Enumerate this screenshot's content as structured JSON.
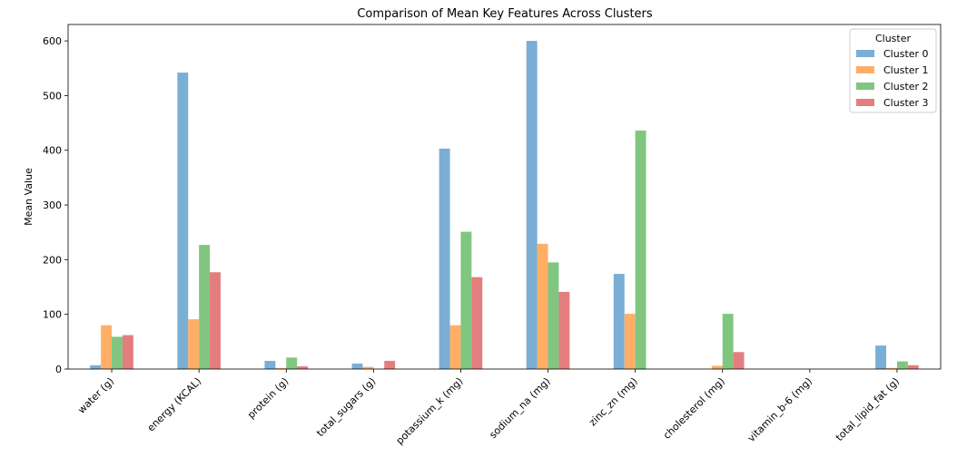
{
  "chart_data": {
    "type": "bar",
    "title": "Comparison of Mean Key Features Across Clusters",
    "xlabel": "",
    "ylabel": "Mean Value",
    "ylim": [
      0,
      630
    ],
    "yticks": [
      0,
      100,
      200,
      300,
      400,
      500,
      600
    ],
    "grid": false,
    "legend": {
      "title": "Cluster",
      "placement": "top-right"
    },
    "categories": [
      "water (g)",
      "energy (KCAL)",
      "protein (g)",
      "total_sugars (g)",
      "potassium_k (mg)",
      "sodium_na (mg)",
      "zinc_zn (mg)",
      "cholesterol (mg)",
      "vitamin_b-6 (mg)",
      "total_lipid_fat (g)"
    ],
    "series": [
      {
        "name": "Cluster 0",
        "color": "#7aaed4",
        "values": [
          7,
          542,
          15,
          10,
          403,
          600,
          174,
          0,
          0,
          43
        ]
      },
      {
        "name": "Cluster 1",
        "color": "#ffae66",
        "values": [
          80,
          91,
          2,
          4,
          80,
          229,
          101,
          6,
          0,
          2
        ]
      },
      {
        "name": "Cluster 2",
        "color": "#80c680",
        "values": [
          59,
          227,
          21,
          0,
          251,
          195,
          436,
          101,
          0,
          14
        ]
      },
      {
        "name": "Cluster 3",
        "color": "#e47d7e",
        "values": [
          62,
          177,
          5,
          15,
          168,
          141,
          0,
          31,
          0,
          7
        ]
      }
    ]
  }
}
